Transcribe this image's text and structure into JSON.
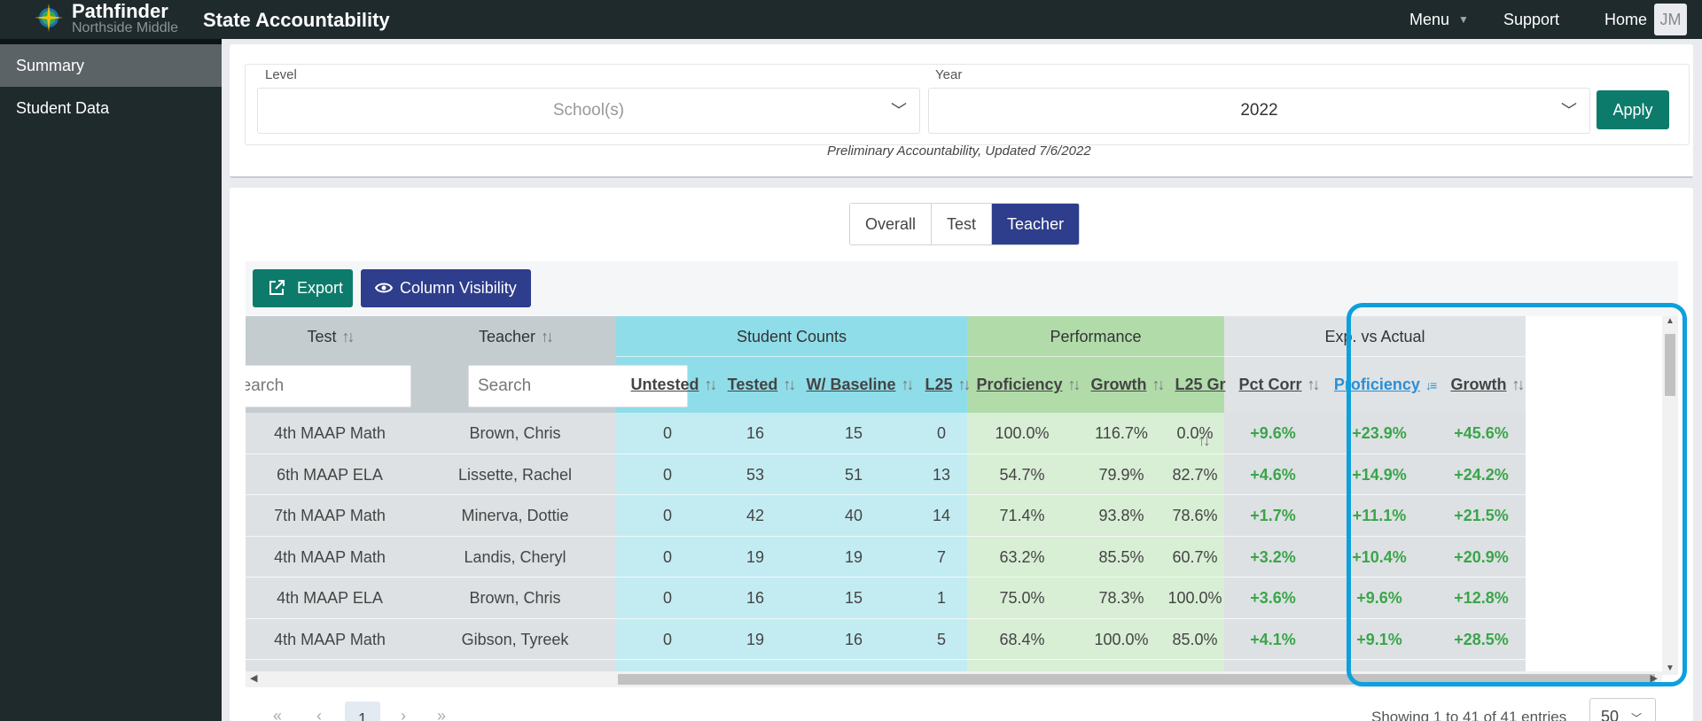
{
  "header": {
    "brand_name": "Pathfinder",
    "brand_sub": "Northside Middle",
    "app_title": "State Accountability",
    "nav": {
      "menu": "Menu",
      "support": "Support",
      "home": "Home"
    },
    "avatar": "JM"
  },
  "sidebar": {
    "items": [
      {
        "label": "Summary"
      },
      {
        "label": "Student Data"
      }
    ]
  },
  "filters": {
    "level_label": "Level",
    "level_value": "School(s)",
    "year_label": "Year",
    "year_value": "2022",
    "apply_label": "Apply",
    "note": "Preliminary Accountability, Updated 7/6/2022"
  },
  "tabs": [
    {
      "label": "Overall"
    },
    {
      "label": "Test"
    },
    {
      "label": "Teacher"
    }
  ],
  "active_tab": "Teacher",
  "toolbar": {
    "export_label": "Export",
    "colvis_label": "Column Visibility"
  },
  "table": {
    "groups": {
      "test": "Test",
      "teacher": "Teacher",
      "counts": "Student Counts",
      "performance": "Performance",
      "exp": "Exp. vs Actual"
    },
    "search_placeholder": "Search",
    "test_search_value": "Search",
    "columns": {
      "untested": "Untested",
      "tested": "Tested",
      "baseline": "W/ Baseline",
      "l25": "L25",
      "proficiency": "Proficiency",
      "growth": "Growth",
      "l25gr": "L25 Gr",
      "pct_corr": "Pct Corr",
      "exp_proficiency": "Proficiency",
      "exp_growth": "Growth"
    },
    "rows": [
      {
        "test": "4th MAAP Math",
        "teacher": "Brown, Chris",
        "untested": "0",
        "tested": "16",
        "baseline": "15",
        "l25": "0",
        "proficiency": "100.0%",
        "growth": "116.7%",
        "l25gr": "0.0%",
        "pct_corr": "+9.6%",
        "exp_prof": "+23.9%",
        "exp_growth": "+45.6%"
      },
      {
        "test": "6th MAAP ELA",
        "teacher": "Lissette, Rachel",
        "untested": "0",
        "tested": "53",
        "baseline": "51",
        "l25": "13",
        "proficiency": "54.7%",
        "growth": "79.9%",
        "l25gr": "82.7%",
        "pct_corr": "+4.6%",
        "exp_prof": "+14.9%",
        "exp_growth": "+24.2%"
      },
      {
        "test": "7th MAAP Math",
        "teacher": "Minerva, Dottie",
        "untested": "0",
        "tested": "42",
        "baseline": "40",
        "l25": "14",
        "proficiency": "71.4%",
        "growth": "93.8%",
        "l25gr": "78.6%",
        "pct_corr": "+1.7%",
        "exp_prof": "+11.1%",
        "exp_growth": "+21.5%"
      },
      {
        "test": "4th MAAP Math",
        "teacher": "Landis, Cheryl",
        "untested": "0",
        "tested": "19",
        "baseline": "19",
        "l25": "7",
        "proficiency": "63.2%",
        "growth": "85.5%",
        "l25gr": "60.7%",
        "pct_corr": "+3.2%",
        "exp_prof": "+10.4%",
        "exp_growth": "+20.9%"
      },
      {
        "test": "4th MAAP ELA",
        "teacher": "Brown, Chris",
        "untested": "0",
        "tested": "16",
        "baseline": "15",
        "l25": "1",
        "proficiency": "75.0%",
        "growth": "78.3%",
        "l25gr": "100.0%",
        "pct_corr": "+3.6%",
        "exp_prof": "+9.6%",
        "exp_growth": "+12.8%"
      },
      {
        "test": "4th MAAP Math",
        "teacher": "Gibson, Tyreek",
        "untested": "0",
        "tested": "19",
        "baseline": "16",
        "l25": "5",
        "proficiency": "68.4%",
        "growth": "100.0%",
        "l25gr": "85.0%",
        "pct_corr": "+4.1%",
        "exp_prof": "+9.1%",
        "exp_growth": "+28.5%"
      }
    ]
  },
  "pagination": {
    "first": "«",
    "prev": "‹",
    "page": "1",
    "next": "›",
    "last": "»",
    "showing": "Showing 1 to 41 of 41 entries",
    "page_size": "50"
  },
  "icons": {
    "logo": "compass-logo-icon",
    "export": "external-link-icon",
    "colvis": "eye-icon"
  },
  "colors": {
    "topbar": "#1f2a2c",
    "teal": "#0c7b6c",
    "indigo": "#2e3d8c",
    "counts_bg": "#c3ecf2",
    "counts_hdr": "#8fdde9",
    "perf_bg": "#d8eed5",
    "perf_hdr": "#b1dcaa",
    "gray_col": "#dde1e3",
    "gray_hdr": "#c4ccd0",
    "positive": "#3aa54a",
    "highlight": "#0ea0dc"
  }
}
